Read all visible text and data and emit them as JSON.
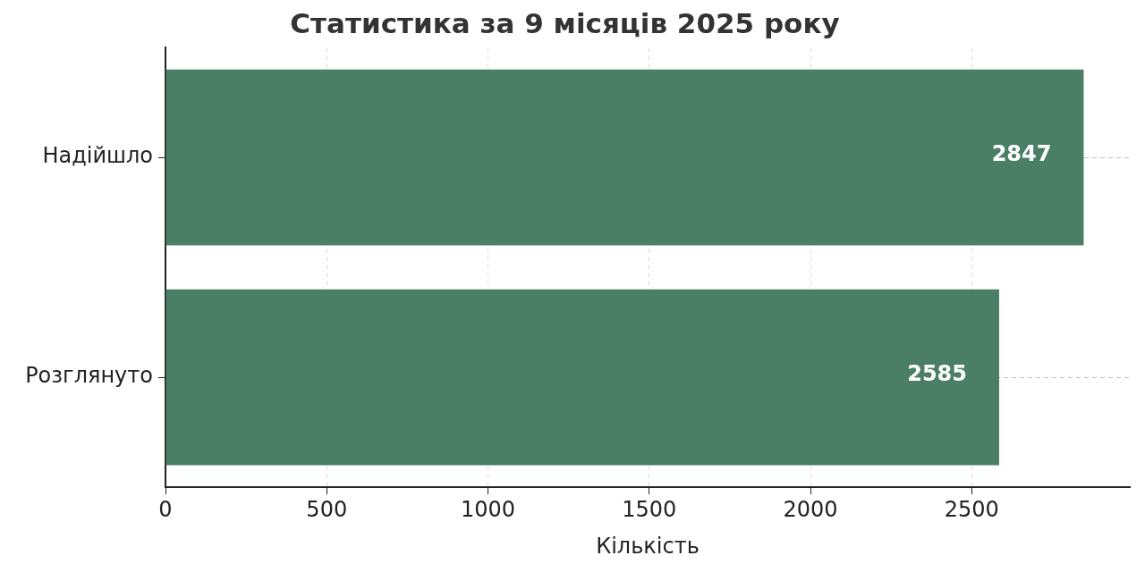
{
  "chart_data": {
    "type": "bar",
    "orientation": "horizontal",
    "title": "Статистика за 9 місяців 2025 року",
    "xlabel": "Кількість",
    "categories": [
      "Надійшло",
      "Розглянуто"
    ],
    "values": [
      2847,
      2585
    ],
    "color": "#4a7f66",
    "xlim": [
      0,
      2990
    ],
    "xticks": [
      0,
      500,
      1000,
      1500,
      2000,
      2500
    ],
    "grid": true,
    "data_labels": true
  }
}
